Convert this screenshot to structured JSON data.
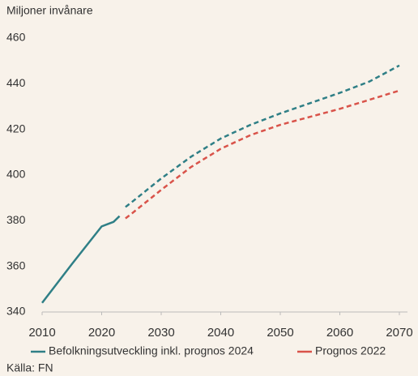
{
  "chart_data": {
    "type": "line",
    "y_axis_label": "Miljoner invånare",
    "source": "Källa: FN",
    "xlim": [
      2010,
      2070
    ],
    "xticks": [
      2010,
      2020,
      2030,
      2040,
      2050,
      2060,
      2070
    ],
    "ylim": [
      340,
      460
    ],
    "yticks": [
      340,
      360,
      380,
      400,
      420,
      440,
      460
    ],
    "grid": false,
    "series": [
      {
        "name": "Befolkningsutveckling inkl. prognos 2024",
        "color": "#2f7f86",
        "dashed_from": 2024,
        "x": [
          2010,
          2015,
          2020,
          2021,
          2022,
          2023,
          2024,
          2025,
          2030,
          2035,
          2040,
          2045,
          2050,
          2055,
          2060,
          2065,
          2070
        ],
        "values": [
          344,
          361,
          377.5,
          378.5,
          379.5,
          382,
          386,
          388,
          398.5,
          408,
          416,
          422,
          427,
          431.5,
          436,
          441,
          448
        ]
      },
      {
        "name": "Prognos 2022",
        "color": "#d9534a",
        "dashed_from": 2024,
        "x": [
          2024,
          2025,
          2030,
          2035,
          2040,
          2045,
          2050,
          2055,
          2060,
          2065,
          2070
        ],
        "values": [
          381,
          383,
          393.5,
          403.5,
          411.5,
          417.5,
          422,
          425.5,
          429,
          433,
          437
        ]
      }
    ]
  }
}
